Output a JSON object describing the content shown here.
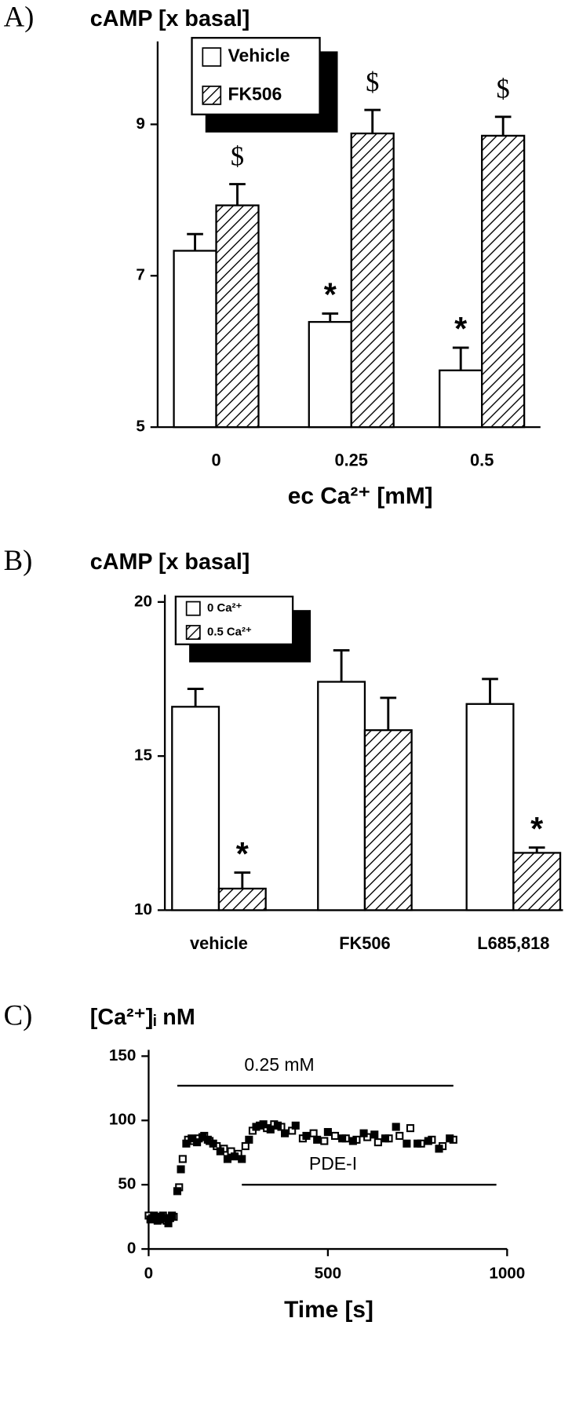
{
  "chart_data": [
    {
      "type": "bar",
      "panel": "A)",
      "title": "cAMP [x basal]",
      "x_label": "ec Ca²⁺ [mM]",
      "categories": [
        "0",
        "0.25",
        "0.5"
      ],
      "series": [
        {
          "name": "Vehicle",
          "color": "#000000",
          "fill": "#ffffff",
          "hatch": false,
          "values": [
            7.33,
            6.39,
            5.75
          ],
          "errors": [
            0.22,
            0.11,
            0.3
          ],
          "annotations": [
            null,
            "*",
            "*"
          ]
        },
        {
          "name": "FK506",
          "color": "#000000",
          "fill": "#ffffff",
          "hatch": true,
          "values": [
            7.93,
            8.88,
            8.85
          ],
          "errors": [
            0.28,
            0.31,
            0.25
          ],
          "annotations": [
            "$",
            "$",
            "$"
          ]
        }
      ],
      "ylim": [
        5,
        10
      ],
      "yticks": [
        5,
        7,
        9
      ],
      "legend": "top-left"
    },
    {
      "type": "bar",
      "panel": "B)",
      "title": "cAMP [x basal]",
      "categories": [
        "vehicle",
        "FK506",
        "L685,818"
      ],
      "series": [
        {
          "name": "0 Ca²⁺",
          "color": "#000000",
          "fill": "#ffffff",
          "hatch": false,
          "values": [
            16.6,
            17.41,
            16.69
          ],
          "errors": [
            0.58,
            1.02,
            0.81
          ],
          "annotations": [
            null,
            null,
            null
          ]
        },
        {
          "name": "0.5 Ca²⁺",
          "color": "#000000",
          "fill": "#ffffff",
          "hatch": true,
          "values": [
            10.7,
            15.84,
            11.86
          ],
          "errors": [
            0.52,
            1.05,
            0.17
          ],
          "annotations": [
            "*",
            null,
            "*"
          ]
        }
      ],
      "ylim": [
        10,
        20
      ],
      "yticks": [
        10,
        15,
        20
      ],
      "legend": "top-left"
    },
    {
      "type": "scatter",
      "panel": "C)",
      "title": "[Ca²⁺]ᵢ nM",
      "x_label": "Time [s]",
      "series": [
        {
          "name": "open",
          "color": "#000000",
          "filled": false,
          "x": [
            0,
            10,
            20,
            30,
            40,
            50,
            60,
            70,
            85,
            95,
            110,
            125,
            140,
            155,
            170,
            190,
            210,
            230,
            250,
            270,
            290,
            310,
            330,
            350,
            370,
            400,
            430,
            460,
            490,
            520,
            550,
            580,
            610,
            640,
            670,
            700,
            730,
            760,
            790,
            820,
            850
          ],
          "values": [
            26,
            24,
            25,
            23,
            26,
            22,
            24,
            25,
            48,
            70,
            85,
            84,
            86,
            88,
            84,
            80,
            78,
            76,
            74,
            80,
            92,
            96,
            94,
            97,
            95,
            92,
            86,
            90,
            84,
            88,
            86,
            85,
            87,
            83,
            86,
            88,
            94,
            82,
            85,
            80,
            85
          ]
        },
        {
          "name": "filled",
          "color": "#000000",
          "filled": true,
          "x": [
            5,
            15,
            25,
            35,
            45,
            55,
            65,
            80,
            90,
            105,
            120,
            135,
            150,
            165,
            180,
            200,
            220,
            240,
            260,
            280,
            300,
            320,
            340,
            360,
            380,
            410,
            440,
            470,
            500,
            540,
            570,
            600,
            630,
            660,
            690,
            720,
            750,
            780,
            810,
            840
          ],
          "values": [
            23,
            26,
            22,
            25,
            24,
            20,
            26,
            45,
            62,
            82,
            86,
            83,
            87,
            85,
            82,
            76,
            70,
            72,
            70,
            85,
            95,
            97,
            93,
            96,
            90,
            96,
            88,
            85,
            91,
            86,
            84,
            90,
            89,
            86,
            95,
            82,
            82,
            84,
            78,
            86
          ]
        }
      ],
      "spans": [
        {
          "label": "0.25 mM",
          "start": 80,
          "end": 850,
          "y": 127
        },
        {
          "label": "PDE-I",
          "start": 260,
          "end": 970,
          "y": 50
        }
      ],
      "xlim": [
        0,
        1000
      ],
      "xticks": [
        0,
        500,
        1000
      ],
      "ylim": [
        0,
        150
      ],
      "yticks": [
        0,
        50,
        100,
        150
      ]
    }
  ]
}
